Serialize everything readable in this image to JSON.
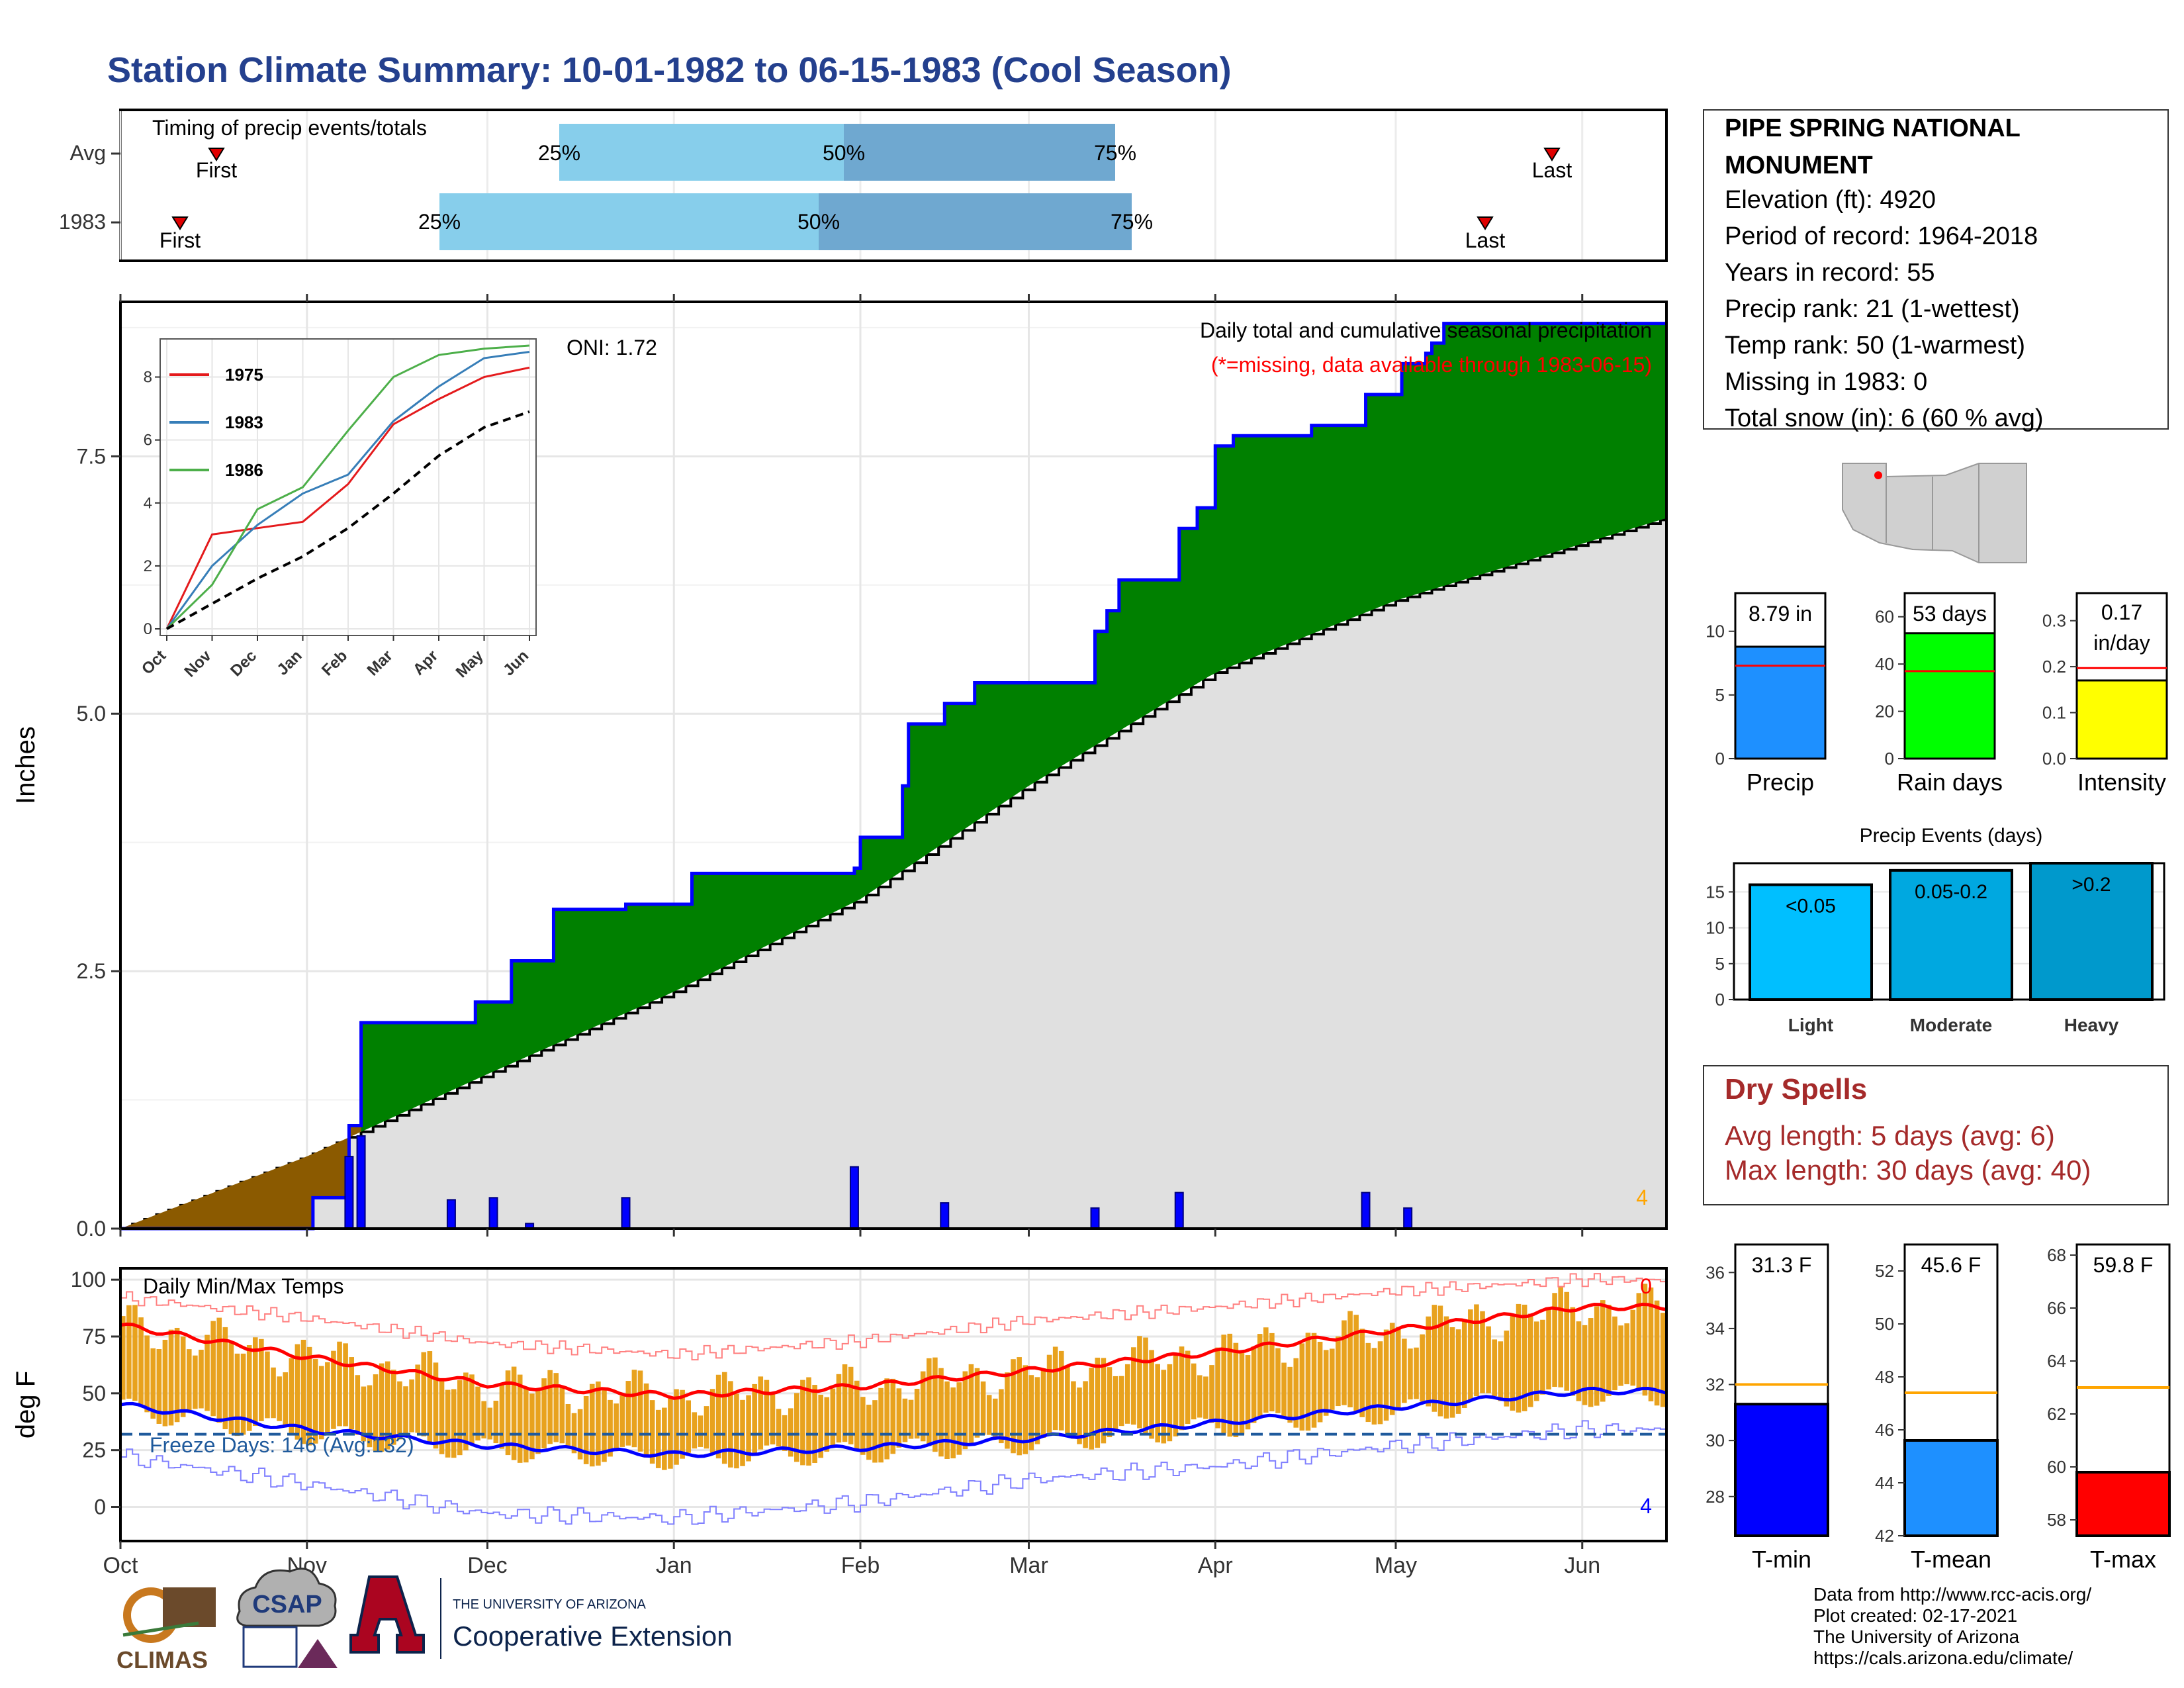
{
  "title": "Station Climate Summary: 10-01-1982 to 06-15-1983 (Cool Season)",
  "colors": {
    "title": "#24408e",
    "precip_area": "#008000",
    "normal_area": "#e0e0e0",
    "early_area": "#8b5a00",
    "cum_line": "#0000ff",
    "bar_blue": "#1e90ff",
    "rain_green": "#00ff00",
    "intensity_yellow": "#ffff00",
    "tmin_blue": "#0000ff",
    "tmax_red": "#ff0000",
    "dry_red": "#a52a2a",
    "orange": "#ffa500"
  },
  "timing": {
    "label": "Timing of precip events/totals",
    "rows": [
      {
        "name": "Avg",
        "first": "First",
        "last": "Last",
        "p25": "25%",
        "p50": "50%",
        "p75": "75%"
      },
      {
        "name": "1983",
        "first": "First",
        "last": "Last",
        "p25": "25%",
        "p50": "50%",
        "p75": "75%"
      }
    ]
  },
  "station": {
    "name_line1": "PIPE SPRING NATIONAL",
    "name_line2": "MONUMENT",
    "lines": [
      "Elevation (ft): 4920",
      "Period of record: 1964-2018",
      "Years in record: 55",
      "Precip rank: 21 (1-wettest)",
      "Temp rank: 50 (1-warmest)",
      "Missing in 1983: 0",
      "Total snow (in): 6 (60 % avg)"
    ]
  },
  "main_plot": {
    "ylabel": "Inches",
    "title": "Daily total and cumulative seasonal precipitation",
    "missing_note": "(*=missing, data available through 1983-06-15)",
    "oni": "ONI: 1.72",
    "corner_count": "4",
    "y_ticks": [
      "0.0",
      "2.5",
      "5.0",
      "7.5"
    ],
    "months": [
      "Oct",
      "Nov",
      "Dec",
      "Jan",
      "Feb",
      "Mar",
      "Apr",
      "May",
      "Jun"
    ]
  },
  "inset": {
    "y_ticks": [
      "0",
      "2",
      "4",
      "6",
      "8"
    ],
    "months": [
      "Oct",
      "Nov",
      "Dec",
      "Jan",
      "Feb",
      "Mar",
      "Apr",
      "May",
      "Jun"
    ],
    "legend": [
      {
        "name": "1975",
        "color": "#e41a1c"
      },
      {
        "name": "1983",
        "color": "#377eb8"
      },
      {
        "name": "1986",
        "color": "#4daf4a"
      }
    ]
  },
  "temp_plot": {
    "ylabel": "deg F",
    "label": "Daily Min/Max Temps",
    "freeze": "Freeze Days: 146 (Avg:132)",
    "top_count": "0",
    "bottom_count": "4",
    "y_ticks": [
      "0",
      "25",
      "50",
      "75",
      "100"
    ],
    "months": [
      "Oct",
      "Nov",
      "Dec",
      "Jan",
      "Feb",
      "Mar",
      "Apr",
      "May",
      "Jun"
    ]
  },
  "precip_bars": [
    {
      "label": "8.79 in",
      "axis": "Precip",
      "ticks": [
        "0",
        "5",
        "10"
      ]
    },
    {
      "label": "53 days",
      "axis": "Rain days",
      "ticks": [
        "0",
        "20",
        "40",
        "60"
      ]
    },
    {
      "label_line1": "0.17",
      "label_line2": "in/day",
      "axis": "Intensity",
      "ticks": [
        "0.0",
        "0.1",
        "0.2",
        "0.3"
      ]
    }
  ],
  "events": {
    "title": "Precip Events (days)",
    "ticks": [
      "0",
      "5",
      "10",
      "15"
    ],
    "bars": [
      {
        "label": "<0.05",
        "axis": "Light",
        "value": 16,
        "color": "#00bfff"
      },
      {
        "label": "0.05-0.2",
        "axis": "Moderate",
        "value": 18,
        "color": "#00a8e0"
      },
      {
        "label": ">0.2",
        "axis": "Heavy",
        "value": 19,
        "color": "#0099cc"
      }
    ]
  },
  "dry_spells": {
    "title": "Dry Spells",
    "avg": "Avg length: 5 days (avg: 6)",
    "max": "Max length: 30 days (avg: 40)"
  },
  "temp_bars": [
    {
      "label": "31.3 F",
      "axis": "T-min",
      "ticks": [
        "28",
        "30",
        "32",
        "34",
        "36"
      ]
    },
    {
      "label": "45.6 F",
      "axis": "T-mean",
      "ticks": [
        "42",
        "44",
        "46",
        "48",
        "50",
        "52"
      ]
    },
    {
      "label": "59.8 F",
      "axis": "T-max",
      "ticks": [
        "58",
        "60",
        "62",
        "64",
        "66",
        "68"
      ]
    }
  ],
  "footer": {
    "lines": [
      "Data from http://www.rcc-acis.org/",
      "Plot created: 02-17-2021",
      "The University of Arizona",
      "https://cals.arizona.edu/climate/"
    ],
    "logo_climas": "CLIMAS",
    "logo_csap": "CSAP",
    "logo_ua_small": "THE UNIVERSITY OF ARIZONA",
    "logo_ua_big": "Cooperative Extension"
  },
  "chart_data": [
    {
      "type": "area",
      "title": "Daily total and cumulative seasonal precipitation",
      "ylabel": "Inches",
      "ylim": [
        0,
        9.0
      ],
      "x_domain": [
        "1982-10-01",
        "1983-06-15"
      ],
      "series": [
        {
          "name": "1983",
          "x": [
            "1982-10-01",
            "1982-10-21",
            "1982-11-02",
            "1982-11-08",
            "1982-11-10",
            "1982-11-29",
            "1982-12-05",
            "1982-12-12",
            "1982-12-24",
            "1983-01-04",
            "1983-01-31",
            "1983-02-01",
            "1983-02-08",
            "1983-02-09",
            "1983-02-15",
            "1983-02-20",
            "1983-02-23",
            "1983-03-12",
            "1983-03-14",
            "1983-03-16",
            "1983-03-26",
            "1983-03-29",
            "1983-04-01",
            "1983-04-04",
            "1983-04-17",
            "1983-04-26",
            "1983-05-02",
            "1983-05-06",
            "1983-05-07",
            "1983-05-09",
            "1983-06-15"
          ],
          "values": [
            0.0,
            0.0,
            0.3,
            1.0,
            2.0,
            2.2,
            2.6,
            3.1,
            3.15,
            3.45,
            3.5,
            3.8,
            4.3,
            4.9,
            5.1,
            5.3,
            5.3,
            5.8,
            6.0,
            6.3,
            6.8,
            7.0,
            7.6,
            7.7,
            7.8,
            8.1,
            8.4,
            8.5,
            8.6,
            8.79,
            8.79
          ]
        },
        {
          "name": "Average",
          "x": [
            "1982-10-01",
            "1982-11-01",
            "1982-12-01",
            "1983-01-01",
            "1983-02-01",
            "1983-03-01",
            "1983-04-01",
            "1983-05-01",
            "1983-06-15"
          ],
          "values": [
            0.0,
            0.7,
            1.5,
            2.3,
            3.2,
            4.3,
            5.4,
            6.1,
            6.9
          ]
        }
      ],
      "daily_bars": [
        {
          "date": "1982-11-08",
          "value": 0.7
        },
        {
          "date": "1982-11-10",
          "value": 0.9
        },
        {
          "date": "1982-11-25",
          "value": 0.28
        },
        {
          "date": "1982-12-02",
          "value": 0.3
        },
        {
          "date": "1982-12-08",
          "value": 0.05
        },
        {
          "date": "1982-12-24",
          "value": 0.3
        },
        {
          "date": "1983-01-31",
          "value": 0.6
        },
        {
          "date": "1983-02-15",
          "value": 0.25
        },
        {
          "date": "1983-03-12",
          "value": 0.2
        },
        {
          "date": "1983-03-26",
          "value": 0.35
        },
        {
          "date": "1983-04-26",
          "value": 0.35
        },
        {
          "date": "1983-05-03",
          "value": 0.2
        }
      ]
    },
    {
      "type": "line",
      "title": "",
      "x": [
        "Oct",
        "Nov",
        "Dec",
        "Jan",
        "Feb",
        "Mar",
        "Apr",
        "May",
        "Jun"
      ],
      "ylim": [
        0,
        9
      ],
      "series": [
        {
          "name": "1975",
          "values": [
            0.0,
            3.0,
            3.2,
            3.4,
            4.6,
            6.5,
            7.3,
            8.0,
            8.3
          ]
        },
        {
          "name": "1983",
          "values": [
            0.0,
            2.0,
            3.3,
            4.3,
            4.9,
            6.6,
            7.7,
            8.6,
            8.8
          ]
        },
        {
          "name": "1986",
          "values": [
            0.0,
            1.4,
            3.8,
            4.5,
            6.3,
            8.0,
            8.7,
            8.9,
            9.0
          ]
        },
        {
          "name": "Average",
          "values": [
            0.0,
            0.8,
            1.6,
            2.3,
            3.2,
            4.3,
            5.5,
            6.4,
            6.9
          ]
        }
      ]
    },
    {
      "type": "line",
      "title": "Daily Min/Max Temps",
      "ylabel": "deg F",
      "ylim": [
        -15,
        105
      ],
      "x": [
        "Oct",
        "Nov",
        "Dec",
        "Jan",
        "Feb",
        "Mar",
        "Apr",
        "May",
        "Jun"
      ],
      "series": [
        {
          "name": "Normal max",
          "values": [
            80,
            66,
            54,
            49,
            53,
            60,
            68,
            78,
            88
          ]
        },
        {
          "name": "Normal min",
          "values": [
            45,
            34,
            27,
            23,
            26,
            30,
            37,
            44,
            51
          ]
        },
        {
          "name": "Record max",
          "values": [
            92,
            83,
            72,
            67,
            73,
            82,
            88,
            95,
            100
          ]
        },
        {
          "name": "Record min",
          "values": [
            22,
            10,
            -3,
            -5,
            2,
            12,
            18,
            27,
            34
          ]
        }
      ],
      "freeze_threshold": 32
    },
    {
      "type": "bar",
      "categories": [
        "Precip",
        "Rain days",
        "Intensity"
      ],
      "values": [
        8.79,
        53,
        0.17
      ],
      "averages": [
        7.3,
        37,
        0.197
      ]
    },
    {
      "type": "bar",
      "title": "Precip Events (days)",
      "categories": [
        "Light",
        "Moderate",
        "Heavy"
      ],
      "values": [
        16,
        18,
        19
      ],
      "ylim": [
        0,
        19
      ]
    },
    {
      "type": "bar",
      "categories": [
        "T-min",
        "T-mean",
        "T-max"
      ],
      "values": [
        31.3,
        45.6,
        59.8
      ],
      "averages": [
        32.0,
        47.4,
        63.0
      ],
      "ylims": [
        [
          26.6,
          37.0
        ],
        [
          42.0,
          53.0
        ],
        [
          57.4,
          68.4
        ]
      ]
    }
  ]
}
